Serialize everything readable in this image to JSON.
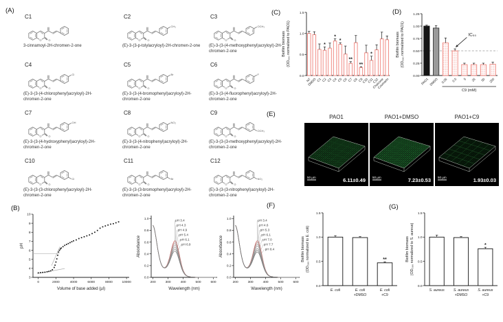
{
  "panels": {
    "a_label": "(A)",
    "b_label": "(B)",
    "c_label": "(C)",
    "d_label": "(D)",
    "e_label": "(E)",
    "f_label": "(F)",
    "g_label": "(G)"
  },
  "compounds": [
    {
      "id": "C1",
      "name": "3-cinnamoyl-2H-chromen-2-one",
      "sub": "",
      "pos": ""
    },
    {
      "id": "C2",
      "name": "(E)-3-(3-p-tolylacryloyl)-2H-chromen-2-one",
      "sub": "CH₃",
      "pos": "para"
    },
    {
      "id": "C3",
      "name": "(E)-3-(3-(4-methoxyphenyl)acryloyl)-2H-chromen-2-one",
      "sub": "OCH₃",
      "pos": "para"
    },
    {
      "id": "C4",
      "name": "(E)-3-(3-(4-chlorophenyl)acryloyl)-2H-chromen-2-one",
      "sub": "Cl",
      "pos": "para"
    },
    {
      "id": "C5",
      "name": "(E)-3-(3-(4-bromophenyl)acryloyl)-2H-chromen-2-one",
      "sub": "Br",
      "pos": "para"
    },
    {
      "id": "C6",
      "name": "(E)-3-(3-(4-fluorophenyl)acryloyl)-2H-chromen-2-one",
      "sub": "F",
      "pos": "para"
    },
    {
      "id": "C7",
      "name": "(E)-3-(3-(4-hydroxyphenyl)acryloyl)-2H-chromen-2-one",
      "sub": "OH",
      "pos": "para"
    },
    {
      "id": "C8",
      "name": "(E)-3-(3-(4-nitrophenyl)acryloyl)-2H-chromen-2-one",
      "sub": "NO₂",
      "pos": "para"
    },
    {
      "id": "C9",
      "name": "(E)-3-(3-(3-methoxyphenyl)acryloyl)-2H-chromen-2-one",
      "sub": "OCH₃",
      "pos": "meta"
    },
    {
      "id": "C10",
      "name": "(E)-3-(3-(3-chlorophenyl)acryloyl)-2H-chromen-2-one",
      "sub": "Cl",
      "pos": "meta"
    },
    {
      "id": "C11",
      "name": "(E)-3-(3-(3-bromophenyl)acryloyl)-2H-chromen-2-one",
      "sub": "Br",
      "pos": "meta"
    },
    {
      "id": "C12",
      "name": "(E)-3-(3-(3-nitrophenyl)acryloyl)-2H-chromen-2-one",
      "sub": "NO₂",
      "pos": "meta"
    }
  ],
  "panel_e": {
    "images": [
      {
        "title": "PAO1",
        "value": "6.11±0.49",
        "scalebar": "50 µm",
        "density": 0.55
      },
      {
        "title": "PAO1+DMSO",
        "value": "7.23±0.53",
        "scalebar": "50 µm",
        "density": 0.85
      },
      {
        "title": "PAO1+C9",
        "value": "1.93±0.03",
        "scalebar": "50 µm",
        "density": 0.16
      }
    ]
  },
  "chart_data": [
    {
      "id": "titration",
      "type": "scatter",
      "xlabel": "Volume of base added (µl)",
      "ylabel": "pH",
      "xlim": [
        -600,
        10300
      ],
      "ylim": [
        3,
        10
      ],
      "xticks": [
        0,
        2000,
        4000,
        6000,
        8000,
        10000
      ],
      "yticks": [
        3,
        4,
        5,
        6,
        7,
        8,
        9,
        10
      ],
      "points": [
        [
          0,
          3.5
        ],
        [
          250,
          3.52
        ],
        [
          500,
          3.55
        ],
        [
          750,
          3.57
        ],
        [
          1000,
          3.62
        ],
        [
          1200,
          3.66
        ],
        [
          1400,
          3.72
        ],
        [
          1600,
          3.85
        ],
        [
          1800,
          4.1
        ],
        [
          1900,
          4.35
        ],
        [
          2000,
          4.7
        ],
        [
          2100,
          5.05
        ],
        [
          2200,
          5.45
        ],
        [
          2300,
          5.8
        ],
        [
          2400,
          6.0
        ],
        [
          2500,
          6.15
        ],
        [
          2600,
          6.25
        ],
        [
          2800,
          6.4
        ],
        [
          3000,
          6.55
        ],
        [
          3200,
          6.65
        ],
        [
          3400,
          6.75
        ],
        [
          3600,
          6.85
        ],
        [
          3800,
          6.95
        ],
        [
          4000,
          7.05
        ],
        [
          4300,
          7.15
        ],
        [
          4600,
          7.3
        ],
        [
          4900,
          7.4
        ],
        [
          5200,
          7.5
        ],
        [
          5500,
          7.6
        ],
        [
          5800,
          7.7
        ],
        [
          6100,
          7.85
        ],
        [
          6400,
          8.0
        ],
        [
          6700,
          8.2
        ],
        [
          7000,
          8.45
        ],
        [
          7300,
          8.6
        ],
        [
          7600,
          8.7
        ],
        [
          7900,
          8.8
        ],
        [
          8200,
          8.9
        ],
        [
          8500,
          8.95
        ],
        [
          8800,
          9.05
        ],
        [
          9100,
          9.15
        ]
      ],
      "guides": [
        [
          -600,
          5.62,
          2400,
          5.62
        ],
        [
          -100,
          3.42,
          3000,
          3.98
        ],
        [
          1500,
          4.3,
          2450,
          6.4
        ]
      ]
    },
    {
      "id": "spectrum1",
      "type": "line",
      "xlabel": "Wavelength (nm)",
      "ylabel": "Absorbance",
      "xlim": [
        188,
        625
      ],
      "ylim": [
        0,
        1.05
      ],
      "xticks": [
        200,
        300,
        400,
        500,
        600
      ],
      "yticks": [
        "0.0",
        "0.2",
        "0.4",
        "0.6",
        "0.8",
        "1.0"
      ],
      "curves": [
        {
          "label": "pH 3.4",
          "peak": 0.55,
          "color": "#c0504d"
        },
        {
          "label": "pH 4.3",
          "peak": 0.515,
          "color": "#b08a88"
        },
        {
          "label": "pH 4.9",
          "peak": 0.48,
          "color": "#a09393"
        },
        {
          "label": "pH 5.4",
          "peak": 0.445,
          "color": "#949494"
        },
        {
          "label": "pH 6.1",
          "peak": 0.41,
          "color": "#878787"
        },
        {
          "label": "pH 6.9",
          "peak": 0.375,
          "color": "#777777"
        }
      ]
    },
    {
      "id": "spectrum2",
      "type": "line",
      "xlabel": "Wavelength (nm)",
      "ylabel": "Absorbance",
      "xlim": [
        188,
        625
      ],
      "ylim": [
        0,
        1.05
      ],
      "xticks": [
        200,
        300,
        400,
        500,
        600
      ],
      "yticks": [
        "0.0",
        "0.2",
        "0.4",
        "0.6",
        "0.8",
        "1.0"
      ],
      "curves": [
        {
          "label": "pH 3.4",
          "peak": 0.55,
          "color": "#c0504d"
        },
        {
          "label": "pH 4.6",
          "peak": 0.52,
          "color": "#b08a88"
        },
        {
          "label": "pH 5.3",
          "peak": 0.49,
          "color": "#a39494"
        },
        {
          "label": "pH 6.1",
          "peak": 0.46,
          "color": "#979797"
        },
        {
          "label": "pH 7.0",
          "peak": 0.42,
          "color": "#8c8c8c"
        },
        {
          "label": "pH 7.7",
          "peak": 0.39,
          "color": "#808080"
        },
        {
          "label": "pH 8.4",
          "peak": 0.36,
          "color": "#737373"
        }
      ]
    },
    {
      "id": "panel-c",
      "type": "bar",
      "ylabel": [
        "Biofilm biomass",
        "(OD₅₉₀ normalized to PAO1)"
      ],
      "ylim": [
        0,
        1.5
      ],
      "yticks": [
        "0.0",
        "0.5",
        "1.0",
        "1.5"
      ],
      "categories": [
        "NT",
        "DMSO",
        "C1",
        "C2",
        "C3",
        "C4",
        "C5",
        "C6",
        "C7",
        "C8",
        "C9",
        "C10",
        "C11",
        "C12",
        "Chalcone",
        "Coumarin"
      ],
      "values": [
        1.0,
        0.97,
        0.62,
        0.6,
        0.65,
        0.82,
        0.74,
        0.51,
        0.29,
        0.78,
        0.19,
        0.54,
        0.36,
        0.61,
        0.87,
        0.85
      ],
      "errors": [
        0.05,
        0.07,
        0.13,
        0.08,
        0.12,
        0.05,
        0.04,
        0.19,
        0.04,
        0.17,
        0.02,
        0.18,
        0.1,
        0.12,
        0.16,
        0.09
      ],
      "sig": [
        "",
        "",
        "",
        "*",
        "",
        "*",
        "*",
        "",
        "**",
        "",
        "**",
        "",
        "*",
        "",
        "",
        ""
      ],
      "bar_fill": "#ffffff",
      "bar_stroke": "#ef8078",
      "rotate_labels": true
    },
    {
      "id": "panel-d",
      "type": "bar",
      "ylabel": [
        "Biofilm biomass",
        "(OD₅₉₀ normalized to PAO1)"
      ],
      "ylim": [
        0,
        1.25
      ],
      "yticks": [
        "0.00",
        "0.25",
        "0.50",
        "0.75",
        "1.00",
        "1.25"
      ],
      "categories": [
        "PAO1",
        "DMSO",
        "0.05",
        "0.5",
        "5",
        "25",
        "50",
        "250"
      ],
      "values": [
        1.0,
        0.96,
        0.66,
        0.5,
        0.22,
        0.22,
        0.22,
        0.23
      ],
      "errors": [
        0.02,
        0.05,
        0.1,
        0.04,
        0.03,
        0.03,
        0.03,
        0.04
      ],
      "styles": [
        "black",
        "gray",
        "dot",
        "dot",
        "dot",
        "dot",
        "dot",
        "dot"
      ],
      "bar_stroke": "#ef8078",
      "rotate_labels": true,
      "dashed_y": 0.5,
      "group": {
        "from": 2,
        "to": 7,
        "label": "C9 (mM)"
      },
      "annotation": {
        "text": "IC₅₀",
        "tx": 4.9,
        "ty": 0.8,
        "ax": 3.55,
        "ay": 0.57
      }
    },
    {
      "id": "panel-f",
      "type": "bar",
      "ylabel": [
        "Biofilm biomass",
        "(OD₅₉₀ normalized to E. coli)"
      ],
      "ylim": [
        0,
        1.5
      ],
      "yticks": [
        "0.0",
        "0.5",
        "1.0",
        "1.5"
      ],
      "categories": [
        {
          "l1": "E. coli",
          "l2": "",
          "italic": true
        },
        {
          "l1": "E. coli",
          "l2": "+DMSO",
          "italic": true
        },
        {
          "l1": "E. coli",
          "l2": "+C9",
          "italic": true
        }
      ],
      "values": [
        1.0,
        0.99,
        0.47
      ],
      "errors": [
        0.03,
        0.02,
        0.02
      ],
      "sig": [
        "",
        "",
        "**"
      ],
      "bar_fill": "#ffffff",
      "bar_stroke": "#111111"
    },
    {
      "id": "panel-g",
      "type": "bar",
      "ylabel": [
        "Biofilm biomass",
        "(OD₅₉₀ normalized to S. aureus)"
      ],
      "ylim": [
        0,
        1.5
      ],
      "yticks": [
        "0.0",
        "0.5",
        "1.0",
        "1.5"
      ],
      "categories": [
        {
          "l1": "S. aureus",
          "l2": "",
          "italic": true
        },
        {
          "l1": "S. aureus",
          "l2": "+DMSO",
          "italic": true
        },
        {
          "l1": "S. aureus",
          "l2": "+C9",
          "italic": true
        }
      ],
      "values": [
        1.0,
        0.99,
        0.76
      ],
      "errors": [
        0.04,
        0.02,
        0.03
      ],
      "sig": [
        "",
        "",
        "*"
      ],
      "bar_fill": "#ffffff",
      "bar_stroke": "#111111"
    }
  ]
}
